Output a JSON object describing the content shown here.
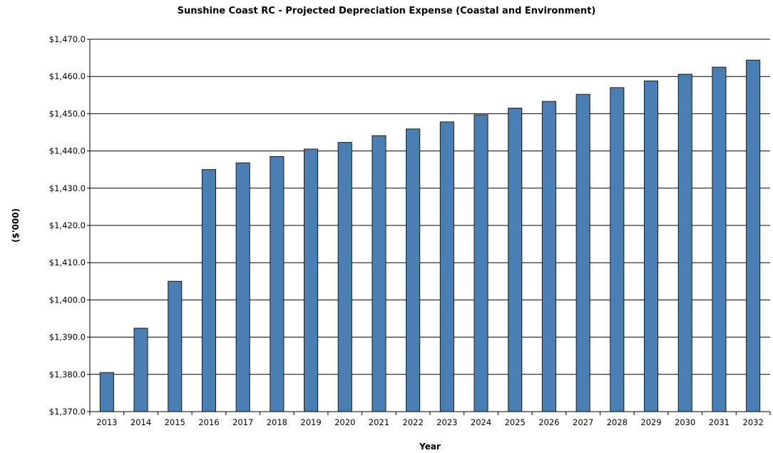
{
  "chart_data": {
    "type": "bar",
    "title": "Sunshine Coast RC - Projected Depreciation Expense (Coastal and Environment)",
    "xlabel": "Year",
    "ylabel": "($'000)",
    "categories": [
      "2013",
      "2014",
      "2015",
      "2016",
      "2017",
      "2018",
      "2019",
      "2020",
      "2021",
      "2022",
      "2023",
      "2024",
      "2025",
      "2026",
      "2027",
      "2028",
      "2029",
      "2030",
      "2031",
      "2032"
    ],
    "values": [
      1380.5,
      1392.4,
      1405.0,
      1435.0,
      1436.8,
      1438.5,
      1440.5,
      1442.3,
      1444.1,
      1445.9,
      1447.8,
      1449.7,
      1451.5,
      1453.3,
      1455.2,
      1457.0,
      1458.8,
      1460.6,
      1462.5,
      1464.4
    ],
    "ylim": [
      1370,
      1470
    ],
    "yticks": [
      1370,
      1380,
      1390,
      1400,
      1410,
      1420,
      1430,
      1440,
      1450,
      1460,
      1470
    ],
    "ytick_labels": [
      "$1,370.0",
      "$1,380.0",
      "$1,390.0",
      "$1,400.0",
      "$1,410.0",
      "$1,420.0",
      "$1,430.0",
      "$1,440.0",
      "$1,450.0",
      "$1,460.0",
      "$1,470.0"
    ],
    "grid": true,
    "colors": {
      "bar": "#4a7fb5",
      "bar_stroke": "#1a1a1a",
      "grid": "#000000"
    }
  }
}
